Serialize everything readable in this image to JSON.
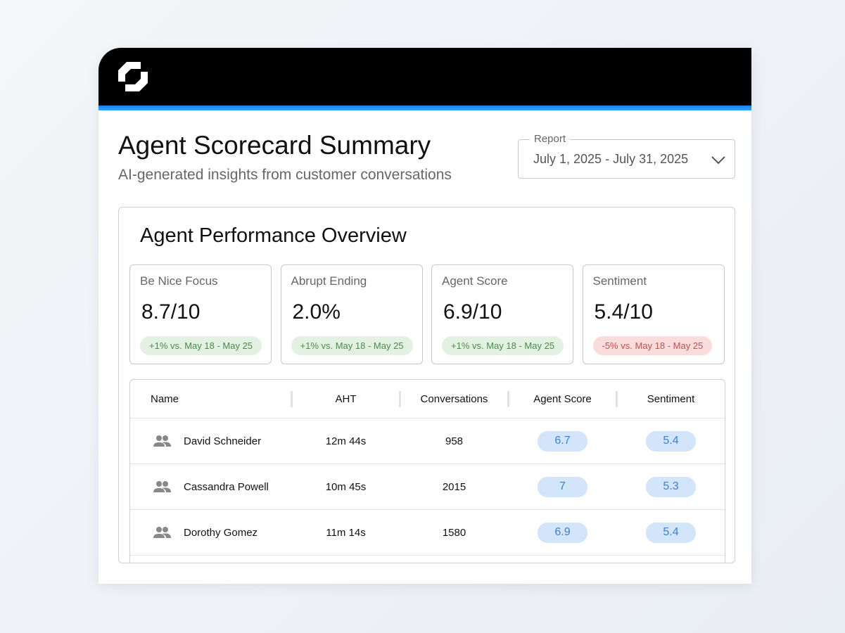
{
  "header": {
    "title": "Agent Scorecard Summary",
    "subtitle": "AI-generated insights from customer conversations"
  },
  "report": {
    "label": "Report",
    "value": "July 1, 2025 - July 31, 2025"
  },
  "overview": {
    "title": "Agent Performance Overview",
    "metrics": [
      {
        "label": "Be Nice Focus",
        "value": "8.7/10",
        "change": "+1% vs. May 18 - May 25",
        "trend": "positive"
      },
      {
        "label": "Abrupt Ending",
        "value": "2.0%",
        "change": "+1% vs. May 18 - May 25",
        "trend": "positive"
      },
      {
        "label": "Agent Score",
        "value": "6.9/10",
        "change": "+1% vs. May 18 - May 25",
        "trend": "positive"
      },
      {
        "label": "Sentiment",
        "value": "5.4/10",
        "change": "-5% vs. May 18 - May 25",
        "trend": "negative"
      }
    ]
  },
  "table": {
    "columns": [
      "Name",
      "AHT",
      "Conversations",
      "Agent Score",
      "Sentiment"
    ],
    "rows": [
      {
        "name": "David Schneider",
        "aht": "12m 44s",
        "conversations": "958",
        "agent_score": "6.7",
        "sentiment": "5.4"
      },
      {
        "name": "Cassandra Powell",
        "aht": "10m 45s",
        "conversations": "2015",
        "agent_score": "7",
        "sentiment": "5.3"
      },
      {
        "name": "Dorothy Gomez",
        "aht": "11m 14s",
        "conversations": "1580",
        "agent_score": "6.9",
        "sentiment": "5.4"
      }
    ]
  }
}
